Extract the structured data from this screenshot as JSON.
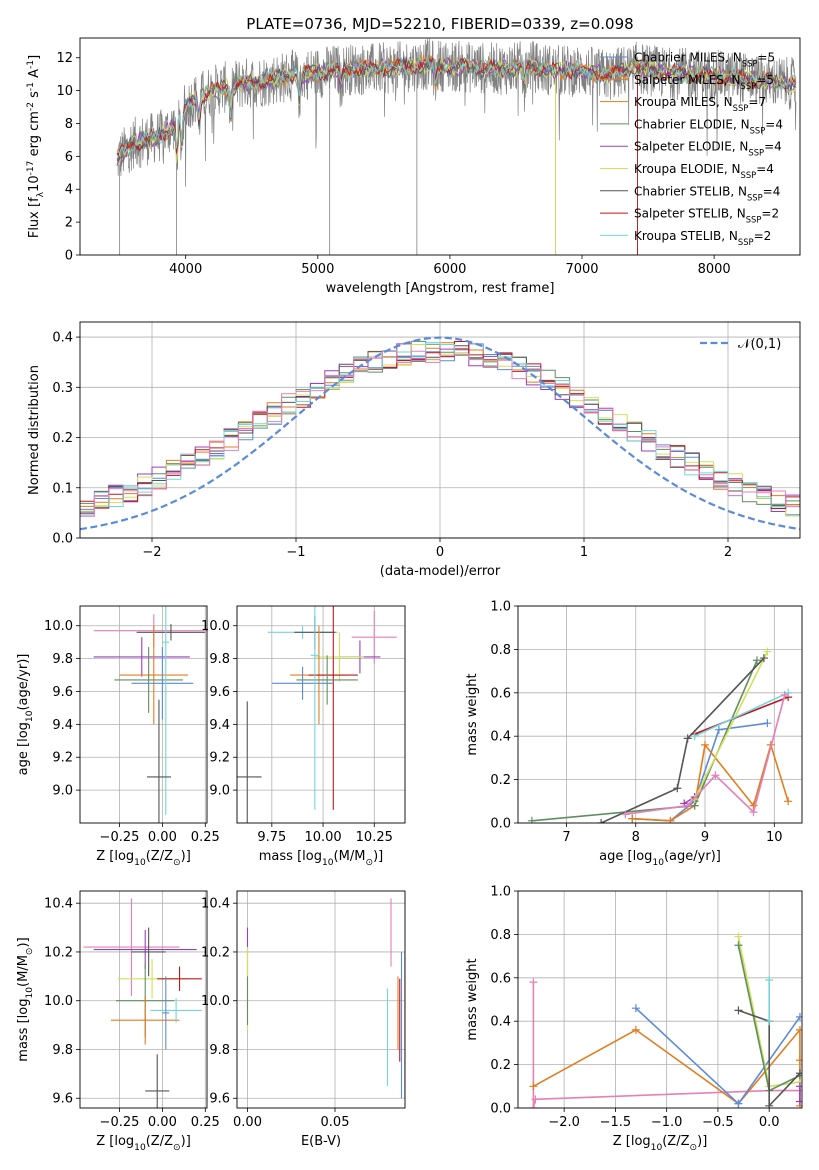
{
  "title": "PLATE=0736, MJD=52210, FIBERID=0339, z=0.098",
  "colors": {
    "blue": "#5b8bd9",
    "orange": "#e47c1e",
    "green": "#5f8f5f",
    "purple": "#9a3fc0",
    "yellow": "#d2e05a",
    "gray": "#555555",
    "red": "#c0171e",
    "cyan": "#72d6dc",
    "pink": "#e77fb8",
    "spec": "#808080"
  },
  "chart_data": [
    {
      "id": "spectrum",
      "type": "line",
      "xlabel": "wavelength [Angstrom, rest frame]",
      "ylabel": "Flux [f$_\\lambda$10$^{-17}$ erg cm$^{-2}$ s$^{-1}$ A$^{-1}$]",
      "xlim": [
        3200,
        8650
      ],
      "ylim": [
        0,
        13.2
      ],
      "xticks": [
        4000,
        5000,
        6000,
        7000,
        8000
      ],
      "yticks": [
        0,
        2,
        4,
        6,
        8,
        10,
        12
      ],
      "legend": "right",
      "series": [
        {
          "name": "Chabrier MILES, N$_{SSP}$=5",
          "color": "#5b8bd9"
        },
        {
          "name": "Salpeter MILES, N$_{SSP}$=5",
          "color": "#e47c1e"
        },
        {
          "name": "Kroupa MILES, N$_{SSP}$=7",
          "color": "#e47c1e"
        },
        {
          "name": "Chabrier ELODIE, N$_{SSP}$=4",
          "color": "#5f8f5f"
        },
        {
          "name": "Salpeter ELODIE, N$_{SSP}$=4",
          "color": "#9a3fc0"
        },
        {
          "name": "Kroupa ELODIE, N$_{SSP}$=4",
          "color": "#d2e05a"
        },
        {
          "name": "Chabrier STELIB, N$_{SSP}$=4",
          "color": "#555555"
        },
        {
          "name": "Salpeter STELIB, N$_{SSP}$=2",
          "color": "#c0171e"
        },
        {
          "name": "Kroupa STELIB, N$_{SSP}$=2",
          "color": "#72d6dc"
        }
      ],
      "continuum": {
        "x": [
          3480,
          3600,
          3700,
          3800,
          3900,
          3950,
          4050,
          4200,
          4400,
          4600,
          4800,
          5000,
          5200,
          5400,
          5600,
          5800,
          6000,
          6200,
          6400,
          6600,
          6800,
          7000,
          7200,
          7400,
          7600,
          7800,
          8000,
          8200,
          8400,
          8600
        ],
        "y": [
          5.8,
          6.8,
          7.0,
          7.2,
          7.8,
          8.5,
          9.4,
          10.0,
          10.4,
          10.6,
          10.9,
          11.1,
          11.3,
          11.3,
          11.4,
          11.6,
          11.5,
          11.4,
          11.3,
          11.5,
          11.2,
          11.2,
          10.9,
          11.4,
          11.1,
          11.0,
          10.9,
          10.8,
          10.6,
          10.4
        ]
      }
    },
    {
      "id": "residuals",
      "type": "bar",
      "xlabel": "(data-model)/error",
      "ylabel": "Normed distribution",
      "xlim": [
        -2.5,
        2.5
      ],
      "ylim": [
        0,
        0.43
      ],
      "xticks": [
        -2,
        -1,
        0,
        1,
        2
      ],
      "yticks": [
        0.0,
        0.1,
        0.2,
        0.3,
        0.4
      ],
      "gaussian_label": "$\\mathcal{N}(0,1)$",
      "legend": "top-right"
    },
    {
      "id": "age_Z",
      "type": "scatter",
      "xlabel": "Z [log$_{10}$(Z/Z$_\\odot$)]",
      "ylabel": "age  [log$_{10}$(age/yr)]",
      "xlim": [
        -0.48,
        0.26
      ],
      "ylim": [
        8.8,
        10.12
      ],
      "xticks": [
        -0.25,
        0.0,
        0.25
      ],
      "yticks": [
        9.0,
        9.2,
        9.4,
        9.6,
        9.8,
        10.0
      ],
      "points": [
        {
          "x": -0.05,
          "y": 9.97,
          "xerr": 0.35,
          "yerr": 0.1,
          "color": "#e77fb8"
        },
        {
          "x": 0.05,
          "y": 9.96,
          "xerr": 0.2,
          "yerr": 0.05,
          "color": "#555555"
        },
        {
          "x": -0.12,
          "y": 9.81,
          "xerr": 0.28,
          "yerr": 0.12,
          "color": "#9a3fc0"
        },
        {
          "x": -0.05,
          "y": 9.7,
          "xerr": 0.2,
          "yerr": 0.3,
          "color": "#e47c1e"
        },
        {
          "x": -0.08,
          "y": 9.67,
          "xerr": 0.2,
          "yerr": 0.2,
          "color": "#5f8f5f"
        },
        {
          "x": 0.0,
          "y": 9.65,
          "xerr": 0.18,
          "yerr": 0.22,
          "color": "#5b8bd9"
        },
        {
          "x": 0.02,
          "y": 9.9,
          "xerr": 0.02,
          "yerr": 1.05,
          "color": "#72d6dc"
        },
        {
          "x": -0.02,
          "y": 9.08,
          "xerr": 0.07,
          "yerr": 0.47,
          "color": "#555555"
        }
      ]
    },
    {
      "id": "age_mass",
      "type": "scatter",
      "xlabel": "mass [log$_{10}$(M/M$_\\odot$)]",
      "xlim": [
        9.58,
        10.4
      ],
      "ylim": [
        8.8,
        10.12
      ],
      "xticks": [
        9.75,
        10.0,
        10.25
      ],
      "yticks": [
        9.0,
        9.2,
        9.4,
        9.6,
        9.8,
        10.0
      ],
      "points": [
        {
          "x": 10.25,
          "y": 9.93,
          "xerr": 0.11,
          "yerr": 0.16,
          "color": "#e77fb8"
        },
        {
          "x": 9.9,
          "y": 9.96,
          "xerr": 0.17,
          "yerr": 0.04,
          "color": "#72d6dc"
        },
        {
          "x": 9.96,
          "y": 9.96,
          "xerr": 0.1,
          "yerr": 0.1,
          "color": "#555555"
        },
        {
          "x": 10.18,
          "y": 9.81,
          "xerr": 0.1,
          "yerr": 0.1,
          "color": "#9a3fc0"
        },
        {
          "x": 10.08,
          "y": 9.81,
          "xerr": 0.12,
          "yerr": 0.15,
          "color": "#d2e05a"
        },
        {
          "x": 9.98,
          "y": 9.7,
          "xerr": 0.14,
          "yerr": 0.3,
          "color": "#e47c1e"
        },
        {
          "x": 10.05,
          "y": 9.7,
          "xerr": 0.12,
          "yerr": 0.82,
          "color": "#c0171e"
        },
        {
          "x": 10.02,
          "y": 9.67,
          "xerr": 0.15,
          "yerr": 0.15,
          "color": "#5f8f5f"
        },
        {
          "x": 9.9,
          "y": 9.65,
          "xerr": 0.15,
          "yerr": 0.1,
          "color": "#5b8bd9"
        },
        {
          "x": 9.96,
          "y": 9.82,
          "xerr": 0.02,
          "yerr": 0.94,
          "color": "#72d6dc"
        },
        {
          "x": 9.63,
          "y": 9.08,
          "xerr": 0.07,
          "yerr": 0.46,
          "color": "#555555"
        }
      ]
    },
    {
      "id": "weight_age",
      "type": "line",
      "xlabel": "age  [log$_{10}$(age/yr)]",
      "ylabel": "mass weight",
      "xlim": [
        6.3,
        10.4
      ],
      "ylim": [
        0,
        1.0
      ],
      "xticks": [
        7,
        8,
        9,
        10
      ],
      "yticks": [
        0.0,
        0.2,
        0.4,
        0.6,
        0.8,
        1.0
      ],
      "series": [
        {
          "color": "#5b8bd9",
          "x": [
            7.95,
            8.5,
            8.85,
            9.2,
            9.9
          ],
          "y": [
            0.02,
            0.01,
            0.1,
            0.43,
            0.46
          ]
        },
        {
          "color": "#e47c1e",
          "x": [
            7.95,
            8.5,
            8.85,
            9.0,
            9.7,
            9.95,
            10.2
          ],
          "y": [
            0.02,
            0.01,
            0.08,
            0.36,
            0.08,
            0.36,
            0.1
          ]
        },
        {
          "color": "#5f8f5f",
          "x": [
            6.5,
            8.85,
            9.75
          ],
          "y": [
            0.01,
            0.08,
            0.75
          ]
        },
        {
          "color": "#9a3fc0",
          "x": [
            8.7,
            8.85
          ],
          "y": [
            0.09,
            0.12
          ]
        },
        {
          "color": "#d2e05a",
          "x": [
            8.85,
            9.9
          ],
          "y": [
            0.11,
            0.79
          ]
        },
        {
          "color": "#555555",
          "x": [
            7.5,
            8.6,
            8.75,
            9.85
          ],
          "y": [
            0.0,
            0.16,
            0.39,
            0.76
          ]
        },
        {
          "color": "#c0171e",
          "x": [
            8.85,
            10.2
          ],
          "y": [
            0.41,
            0.58
          ]
        },
        {
          "color": "#72d6dc",
          "x": [
            8.85,
            10.2
          ],
          "y": [
            0.4,
            0.6
          ]
        },
        {
          "color": "#e77fb8",
          "x": [
            7.85,
            8.75,
            9.15,
            9.7,
            10.15
          ],
          "y": [
            0.04,
            0.08,
            0.22,
            0.05,
            0.59
          ]
        }
      ]
    },
    {
      "id": "mass_Z",
      "type": "scatter",
      "xlabel": "Z [log$_{10}$(Z/Z$_\\odot$)]",
      "ylabel": "mass [log$_{10}$(M/M$_\\odot$)]",
      "xlim": [
        -0.48,
        0.26
      ],
      "ylim": [
        9.56,
        10.45
      ],
      "xticks": [
        -0.25,
        0.0,
        0.25
      ],
      "yticks": [
        9.6,
        9.8,
        10.0,
        10.2,
        10.4
      ],
      "points": [
        {
          "x": -0.18,
          "y": 10.22,
          "xerr": 0.28,
          "yerr": 0.2,
          "color": "#e77fb8"
        },
        {
          "x": -0.1,
          "y": 10.21,
          "xerr": 0.3,
          "yerr": 0.08,
          "color": "#9a3fc0"
        },
        {
          "x": -0.08,
          "y": 10.2,
          "xerr": 0.1,
          "yerr": 0.1,
          "color": "#555555"
        },
        {
          "x": -0.06,
          "y": 10.09,
          "xerr": 0.2,
          "yerr": 0.08,
          "color": "#d2e05a"
        },
        {
          "x": 0.1,
          "y": 10.09,
          "xerr": 0.13,
          "yerr": 0.05,
          "color": "#c0171e"
        },
        {
          "x": -0.1,
          "y": 10.0,
          "xerr": 0.17,
          "yerr": 0.15,
          "color": "#5f8f5f"
        },
        {
          "x": -0.1,
          "y": 9.92,
          "xerr": 0.2,
          "yerr": 0.1,
          "color": "#e47c1e"
        },
        {
          "x": 0.08,
          "y": 9.96,
          "xerr": 0.15,
          "yerr": 0.05,
          "color": "#72d6dc"
        },
        {
          "x": 0.02,
          "y": 9.95,
          "xerr": 0.02,
          "yerr": 0.15,
          "color": "#5b8bd9"
        },
        {
          "x": -0.03,
          "y": 9.63,
          "xerr": 0.07,
          "yerr": 0.15,
          "color": "#555555"
        }
      ]
    },
    {
      "id": "mass_EBV",
      "type": "scatter",
      "xlabel": "E(B-V)",
      "xlim": [
        -0.006,
        0.09
      ],
      "ylim": [
        9.56,
        10.45
      ],
      "xticks": [
        0.0,
        0.05
      ],
      "yticks": [
        9.6,
        9.8,
        10.0,
        10.2,
        10.4
      ],
      "points": [
        {
          "x": 0.0,
          "y": 10.2,
          "yerr": 0.1,
          "color": "#9a3fc0"
        },
        {
          "x": 0.0,
          "y": 10.05,
          "yerr": 0.17,
          "color": "#d2e05a"
        },
        {
          "x": 0.0,
          "y": 10.0,
          "yerr": 0.1,
          "color": "#5f8f5f"
        },
        {
          "x": 0.082,
          "y": 10.28,
          "yerr": 0.14,
          "color": "#e77fb8"
        },
        {
          "x": 0.08,
          "y": 9.85,
          "yerr": 0.2,
          "color": "#72d6dc"
        },
        {
          "x": 0.086,
          "y": 9.95,
          "yerr": 0.15,
          "color": "#e47c1e"
        },
        {
          "x": 0.087,
          "y": 9.92,
          "yerr": 0.17,
          "color": "#c0171e"
        },
        {
          "x": 0.088,
          "y": 9.9,
          "yerr": 0.3,
          "color": "#5b8bd9"
        },
        {
          "x": 0.09,
          "y": 9.9,
          "yerr": 0.3,
          "color": "#555555"
        }
      ]
    },
    {
      "id": "weight_Z",
      "type": "line",
      "xlabel": "Z [log$_{10}$(Z/Z$_\\odot$)]",
      "ylabel": "mass weight",
      "xlim": [
        -2.45,
        0.32
      ],
      "ylim": [
        0,
        1.0
      ],
      "xticks": [
        -2.0,
        -1.5,
        -1.0,
        -0.5,
        0.0
      ],
      "yticks": [
        0.0,
        0.2,
        0.4,
        0.6,
        0.8,
        1.0
      ],
      "series": [
        {
          "color": "#e77fb8",
          "x": [
            -2.3,
            -2.3,
            -2.28,
            0.0,
            0.3
          ],
          "y": [
            0.58,
            0.0,
            0.04,
            0.08,
            0.08
          ]
        },
        {
          "color": "#e47c1e",
          "x": [
            -2.3,
            -1.3,
            -0.3,
            0.3,
            0.3,
            0.3
          ],
          "y": [
            0.1,
            0.36,
            0.02,
            0.36,
            0.22,
            0.01
          ]
        },
        {
          "color": "#5b8bd9",
          "x": [
            -1.3,
            -0.3,
            0.3
          ],
          "y": [
            0.46,
            0.02,
            0.42
          ]
        },
        {
          "color": "#d2e05a",
          "x": [
            -0.3,
            0.0,
            0.3
          ],
          "y": [
            0.79,
            0.1,
            0.12
          ]
        },
        {
          "color": "#5f8f5f",
          "x": [
            -0.3,
            0.0,
            0.3
          ],
          "y": [
            0.75,
            0.08,
            0.15
          ]
        },
        {
          "color": "#555555",
          "x": [
            -0.3,
            0.0,
            0.0,
            0.3
          ],
          "y": [
            0.45,
            0.4,
            0.01,
            0.16
          ]
        },
        {
          "color": "#72d6dc",
          "x": [
            0.0,
            0.0
          ],
          "y": [
            0.59,
            0.4
          ]
        },
        {
          "color": "#9a3fc0",
          "x": [
            0.3,
            0.3
          ],
          "y": [
            0.1,
            0.03
          ]
        }
      ]
    }
  ]
}
